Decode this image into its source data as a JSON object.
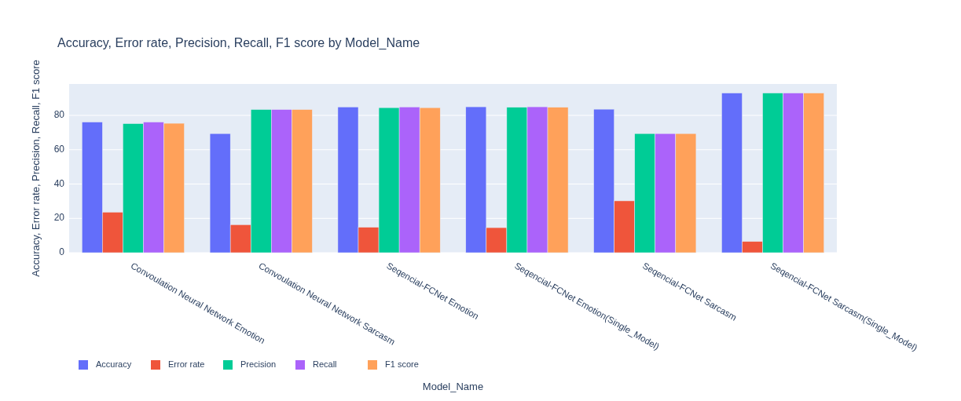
{
  "chart_data": {
    "type": "bar",
    "title": "Accuracy, Error rate, Precision, Recall, F1 score by Model_Name",
    "xlabel": "Model_Name",
    "ylabel": "Accuracy, Error rate, Precision, Recall, F1 score",
    "categories": [
      "Convoulation Neural Network Emotion",
      "Convoulation Neural Network Sarcasm",
      "Seqencial-FCNet Emotion",
      "Seqencial-FCNet Emotion(Single_Model)",
      "Seqencial-FCNet Sarcasm",
      "Seqencial-FCNet Sarcasm(Single_Model)"
    ],
    "series": [
      {
        "name": "Accuracy",
        "color": "#636efa",
        "values": [
          76.1,
          69.4,
          84.9,
          85.0,
          83.6,
          93.0
        ]
      },
      {
        "name": "Error rate",
        "color": "#ef553b",
        "values": [
          23.6,
          16.3,
          14.8,
          14.6,
          30.2,
          6.5
        ]
      },
      {
        "name": "Precision",
        "color": "#00cc96",
        "values": [
          75.2,
          83.4,
          84.5,
          84.7,
          69.4,
          93.0
        ]
      },
      {
        "name": "Recall",
        "color": "#ab63fa",
        "values": [
          76.1,
          83.4,
          84.9,
          85.0,
          69.4,
          93.0
        ]
      },
      {
        "name": "F1 score",
        "color": "#ffa15a",
        "values": [
          75.4,
          83.4,
          84.5,
          84.7,
          69.4,
          93.0
        ]
      }
    ],
    "ylim": [
      0,
      98.3
    ],
    "yticks": [
      0,
      20,
      40,
      60,
      80
    ],
    "grid": "y",
    "legend": "bottom"
  }
}
